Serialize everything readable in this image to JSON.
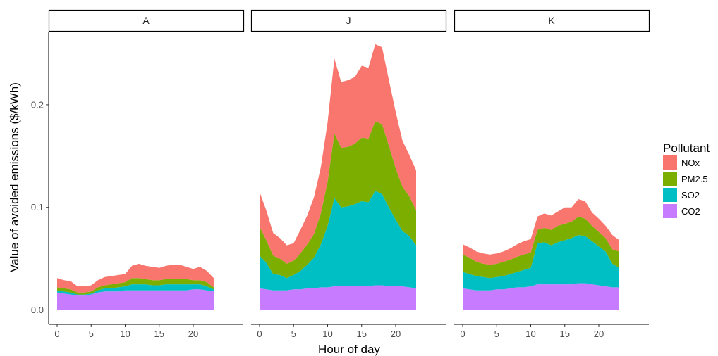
{
  "chart_data": {
    "type": "area",
    "stacked": true,
    "ylabel": "Value of avoided emissions ($/kWh)",
    "xlabel": "Hour of day",
    "ylim": [
      0,
      0.27
    ],
    "xlim": [
      -1,
      24
    ],
    "yticks": [
      0.0,
      0.1,
      0.2
    ],
    "ytick_labels": [
      "0.0",
      "0.1",
      "0.2"
    ],
    "xticks": [
      0,
      5,
      10,
      15,
      20
    ],
    "xtick_labels": [
      "0",
      "5",
      "10",
      "15",
      "20"
    ],
    "x": [
      0,
      1,
      2,
      3,
      4,
      5,
      6,
      7,
      8,
      9,
      10,
      11,
      12,
      13,
      14,
      15,
      16,
      17,
      18,
      19,
      20,
      21,
      22,
      23
    ],
    "legend": {
      "title": "Pollutant",
      "position": "right",
      "entries": [
        {
          "name": "NOx",
          "color": "#F8766D"
        },
        {
          "name": "PM2.5",
          "color": "#7CAE00"
        },
        {
          "name": "SO2",
          "color": "#00BFC4"
        },
        {
          "name": "CO2",
          "color": "#C77CFF"
        }
      ]
    },
    "stack_order": [
      "CO2",
      "SO2",
      "PM2.5",
      "NOx"
    ],
    "colors": {
      "CO2": "#C77CFF",
      "SO2": "#00BFC4",
      "PM2.5": "#7CAE00",
      "NOx": "#F8766D"
    },
    "panels": [
      {
        "label": "A",
        "series": [
          {
            "name": "CO2",
            "values": [
              0.017,
              0.016,
              0.015,
              0.014,
              0.014,
              0.015,
              0.017,
              0.018,
              0.018,
              0.018,
              0.019,
              0.019,
              0.019,
              0.019,
              0.019,
              0.019,
              0.019,
              0.019,
              0.019,
              0.019,
              0.02,
              0.02,
              0.019,
              0.018
            ]
          },
          {
            "name": "SO2",
            "values": [
              0.002,
              0.002,
              0.002,
              0.001,
              0.001,
              0.001,
              0.002,
              0.003,
              0.003,
              0.004,
              0.004,
              0.006,
              0.006,
              0.006,
              0.005,
              0.005,
              0.006,
              0.006,
              0.006,
              0.006,
              0.005,
              0.005,
              0.004,
              0.002
            ]
          },
          {
            "name": "PM2.5",
            "values": [
              0.003,
              0.003,
              0.003,
              0.002,
              0.002,
              0.002,
              0.003,
              0.003,
              0.004,
              0.004,
              0.004,
              0.006,
              0.006,
              0.005,
              0.005,
              0.005,
              0.005,
              0.005,
              0.005,
              0.005,
              0.004,
              0.004,
              0.004,
              0.002
            ]
          },
          {
            "name": "NOx",
            "values": [
              0.009,
              0.008,
              0.008,
              0.006,
              0.006,
              0.006,
              0.007,
              0.008,
              0.008,
              0.008,
              0.008,
              0.012,
              0.014,
              0.013,
              0.013,
              0.012,
              0.013,
              0.014,
              0.014,
              0.012,
              0.011,
              0.013,
              0.011,
              0.009
            ]
          }
        ]
      },
      {
        "label": "J",
        "series": [
          {
            "name": "CO2",
            "values": [
              0.021,
              0.02,
              0.019,
              0.019,
              0.019,
              0.02,
              0.02,
              0.021,
              0.021,
              0.022,
              0.022,
              0.023,
              0.023,
              0.023,
              0.023,
              0.023,
              0.023,
              0.024,
              0.024,
              0.023,
              0.023,
              0.023,
              0.022,
              0.021
            ]
          },
          {
            "name": "SO2",
            "values": [
              0.032,
              0.026,
              0.016,
              0.015,
              0.012,
              0.014,
              0.018,
              0.023,
              0.03,
              0.042,
              0.06,
              0.086,
              0.077,
              0.078,
              0.08,
              0.083,
              0.082,
              0.092,
              0.089,
              0.077,
              0.065,
              0.054,
              0.05,
              0.042
            ]
          },
          {
            "name": "PM2.5",
            "values": [
              0.028,
              0.022,
              0.018,
              0.016,
              0.014,
              0.014,
              0.017,
              0.02,
              0.023,
              0.03,
              0.043,
              0.063,
              0.058,
              0.058,
              0.059,
              0.062,
              0.062,
              0.068,
              0.068,
              0.06,
              0.05,
              0.043,
              0.039,
              0.034
            ]
          },
          {
            "name": "NOx",
            "values": [
              0.034,
              0.029,
              0.022,
              0.02,
              0.018,
              0.017,
              0.023,
              0.028,
              0.036,
              0.045,
              0.058,
              0.073,
              0.064,
              0.065,
              0.065,
              0.07,
              0.069,
              0.075,
              0.075,
              0.064,
              0.055,
              0.045,
              0.04,
              0.039
            ]
          }
        ]
      },
      {
        "label": "K",
        "series": [
          {
            "name": "CO2",
            "values": [
              0.021,
              0.02,
              0.019,
              0.019,
              0.019,
              0.02,
              0.02,
              0.021,
              0.022,
              0.022,
              0.023,
              0.025,
              0.025,
              0.025,
              0.025,
              0.025,
              0.025,
              0.026,
              0.026,
              0.025,
              0.024,
              0.023,
              0.022,
              0.022
            ]
          },
          {
            "name": "SO2",
            "values": [
              0.016,
              0.015,
              0.014,
              0.013,
              0.012,
              0.012,
              0.013,
              0.014,
              0.015,
              0.017,
              0.018,
              0.04,
              0.041,
              0.038,
              0.041,
              0.043,
              0.045,
              0.047,
              0.046,
              0.042,
              0.038,
              0.034,
              0.023,
              0.019
            ]
          },
          {
            "name": "PM2.5",
            "values": [
              0.017,
              0.016,
              0.014,
              0.013,
              0.013,
              0.013,
              0.014,
              0.014,
              0.015,
              0.015,
              0.015,
              0.013,
              0.014,
              0.015,
              0.016,
              0.016,
              0.016,
              0.018,
              0.017,
              0.015,
              0.014,
              0.013,
              0.014,
              0.016
            ]
          },
          {
            "name": "NOx",
            "values": [
              0.01,
              0.01,
              0.01,
              0.01,
              0.01,
              0.01,
              0.01,
              0.011,
              0.012,
              0.013,
              0.013,
              0.013,
              0.014,
              0.014,
              0.014,
              0.016,
              0.014,
              0.017,
              0.017,
              0.013,
              0.013,
              0.012,
              0.014,
              0.011
            ]
          }
        ]
      }
    ]
  }
}
